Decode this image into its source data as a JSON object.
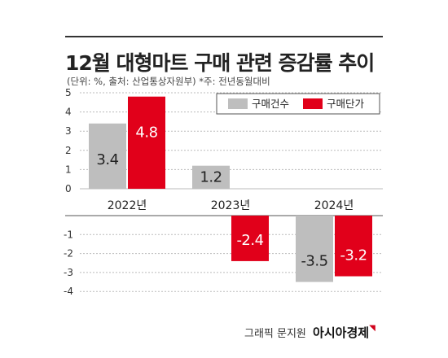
{
  "title": "12월 대형마트 구매 관련 증감률 추이",
  "subtitle": "(단위: %, 출처: 산업통상자원부) *주: 전년동월대비",
  "credit": "그래픽 문지원",
  "brand": "아시아경제",
  "colors": {
    "series1": "#bebebe",
    "series2": "#e1001a",
    "grid": "#bbbbbb"
  },
  "chart_data": {
    "type": "bar",
    "title": "12월 대형마트 구매 관련 증감률 추이",
    "categories": [
      "2022년",
      "2023년",
      "2024년"
    ],
    "series": [
      {
        "name": "구매건수",
        "values": [
          3.4,
          1.2,
          -3.5
        ]
      },
      {
        "name": "구매단가",
        "values": [
          4.8,
          -2.4,
          -3.2
        ]
      }
    ],
    "data_labels": {
      "구매건수": [
        "3.4",
        "1.2",
        "-3.5"
      ],
      "구매단가": [
        "4.8",
        "-2.4",
        "-3.2"
      ]
    },
    "yticks_upper": [
      0,
      1,
      2,
      3,
      4,
      5
    ],
    "yticks_lower": [
      -1,
      -2,
      -3,
      -4
    ],
    "yticks_upper_labels": [
      "0",
      "1",
      "2",
      "3",
      "4",
      "5"
    ],
    "yticks_lower_labels": [
      "-1",
      "-2",
      "-3",
      "-4"
    ],
    "ylim": [
      -4,
      5
    ],
    "grid": true,
    "legend_position": "top-right"
  }
}
